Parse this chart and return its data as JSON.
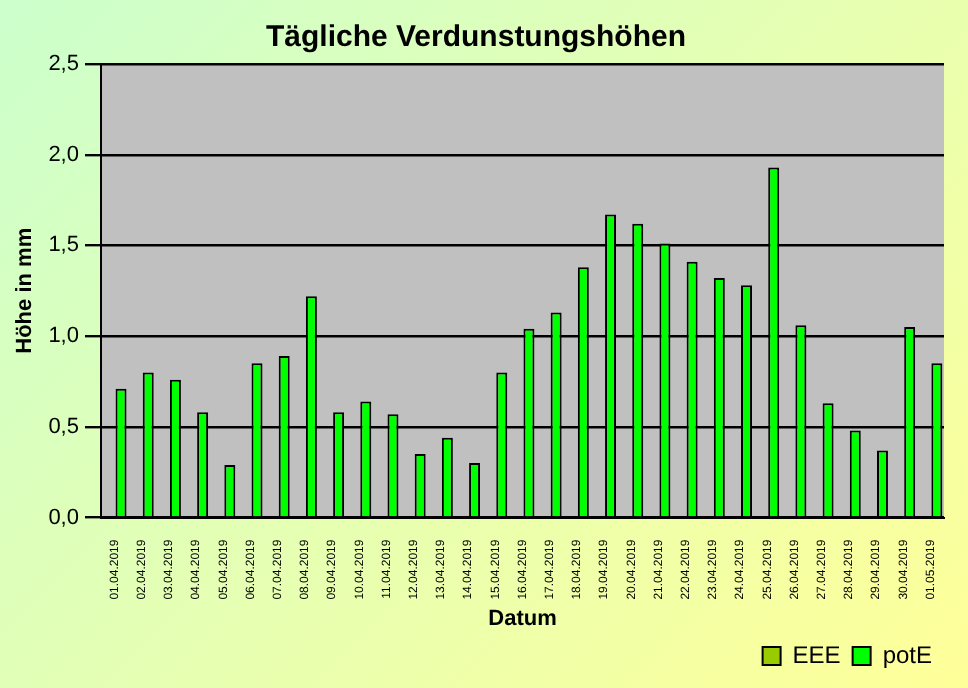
{
  "chart_data": {
    "type": "bar",
    "title": "Tägliche Verdunstungshöhen",
    "xlabel": "Datum",
    "ylabel": "Höhe in mm",
    "categories": [
      "01.04.2019",
      "02.04.2019",
      "03.04.2019",
      "04.04.2019",
      "05.04.2019",
      "06.04.2019",
      "07.04.2019",
      "08.04.2019",
      "09.04.2019",
      "10.04.2019",
      "11.04.2019",
      "12.04.2019",
      "13.04.2019",
      "14.04.2019",
      "15.04.2019",
      "16.04.2019",
      "17.04.2019",
      "18.04.2019",
      "19.04.2019",
      "20.04.2019",
      "21.04.2019",
      "22.04.2019",
      "23.04.2019",
      "24.04.2019",
      "25.04.2019",
      "26.04.2019",
      "27.04.2019",
      "28.04.2019",
      "29.04.2019",
      "30.04.2019",
      "01.05.2019"
    ],
    "series": [
      {
        "name": "EEE",
        "color": "#99cc00",
        "values": [
          null,
          null,
          null,
          null,
          null,
          null,
          null,
          null,
          null,
          null,
          null,
          null,
          null,
          null,
          null,
          null,
          null,
          null,
          null,
          null,
          null,
          null,
          null,
          null,
          null,
          null,
          null,
          null,
          null,
          null,
          null
        ]
      },
      {
        "name": "potE",
        "color": "#00ff00",
        "values": [
          0.71,
          0.8,
          0.76,
          0.58,
          0.29,
          0.85,
          0.89,
          1.22,
          0.58,
          0.64,
          0.57,
          0.35,
          0.44,
          0.3,
          0.8,
          1.04,
          1.13,
          1.38,
          1.67,
          1.62,
          1.51,
          1.41,
          1.32,
          1.28,
          1.93,
          1.06,
          0.63,
          0.48,
          0.37,
          1.05,
          0.85
        ]
      }
    ],
    "ylim": [
      0,
      2.5
    ],
    "yticks": [
      {
        "value": 0,
        "label": "0,0"
      },
      {
        "value": 0.5,
        "label": "0,5"
      },
      {
        "value": 1,
        "label": "1,0"
      },
      {
        "value": 1.5,
        "label": "1,5"
      },
      {
        "value": 2,
        "label": "2,0"
      },
      {
        "value": 2.5,
        "label": "2,5"
      }
    ],
    "grid": "y",
    "legend": "bottom right"
  }
}
